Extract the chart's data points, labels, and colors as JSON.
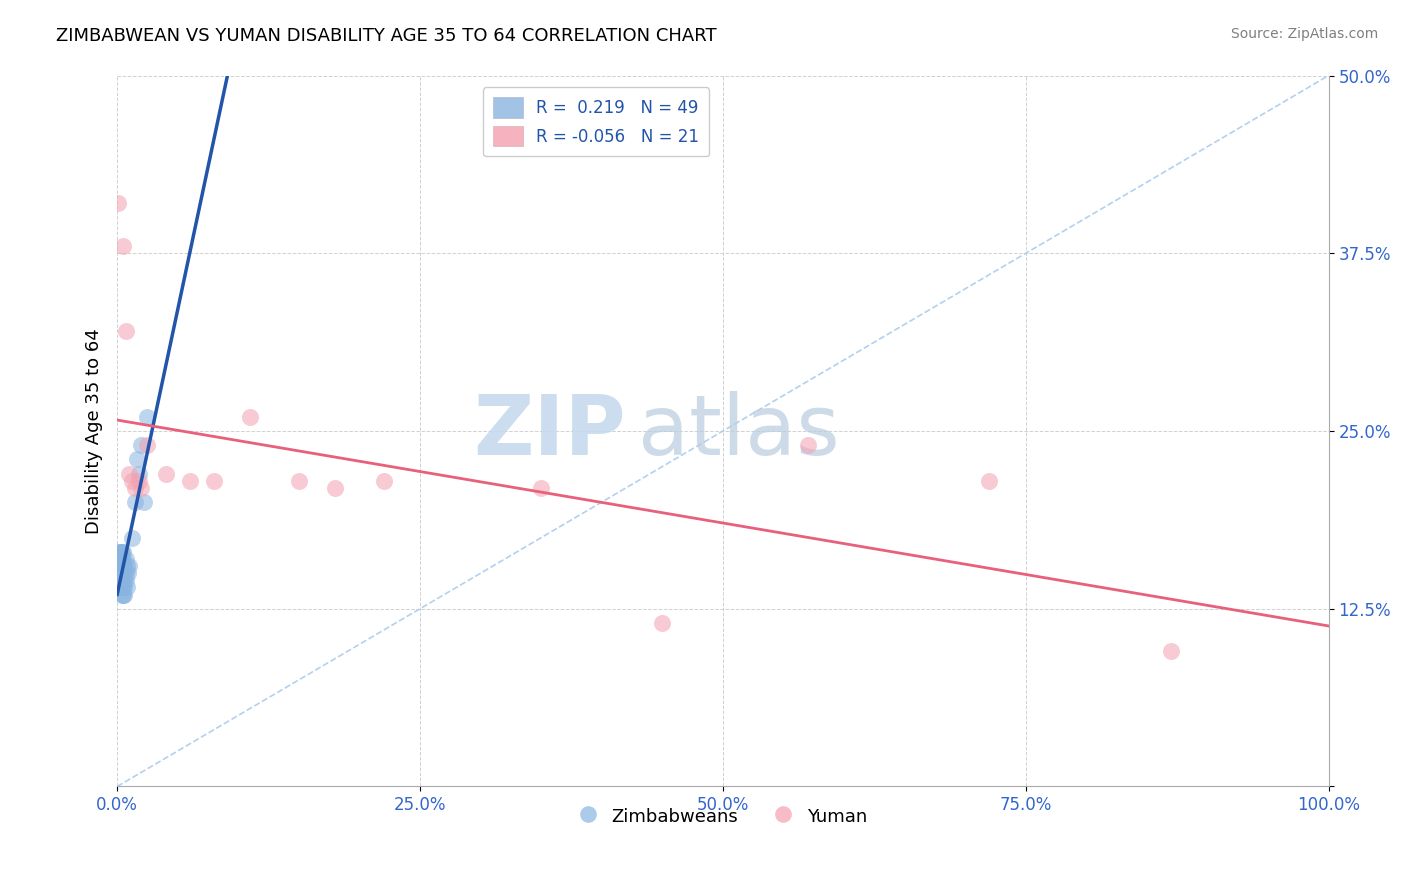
{
  "title": "ZIMBABWEAN VS YUMAN DISABILITY AGE 35 TO 64 CORRELATION CHART",
  "source_text": "Source: ZipAtlas.com",
  "ylabel": "Disability Age 35 to 64",
  "xlim": [
    0,
    1.0
  ],
  "ylim": [
    0,
    0.5
  ],
  "xticks": [
    0.0,
    0.25,
    0.5,
    0.75,
    1.0
  ],
  "xticklabels": [
    "0.0%",
    "25.0%",
    "50.0%",
    "75.0%",
    "100.0%"
  ],
  "yticks": [
    0.0,
    0.125,
    0.25,
    0.375,
    0.5
  ],
  "yticklabels": [
    "",
    "12.5%",
    "25.0%",
    "37.5%",
    "50.0%"
  ],
  "legend_labels": [
    "Zimbabweans",
    "Yuman"
  ],
  "R_blue": 0.219,
  "N_blue": 49,
  "R_pink": -0.056,
  "N_pink": 21,
  "blue_color": "#89B4E0",
  "pink_color": "#F4A0B0",
  "blue_line_color": "#2255AA",
  "pink_line_color": "#E8607A",
  "ref_line_color": "#AACCEE",
  "watermark_color": "#C5D8EE",
  "blue_scatter_x": [
    0.001,
    0.001,
    0.001,
    0.001,
    0.002,
    0.002,
    0.002,
    0.002,
    0.002,
    0.003,
    0.003,
    0.003,
    0.003,
    0.003,
    0.003,
    0.003,
    0.004,
    0.004,
    0.004,
    0.004,
    0.004,
    0.004,
    0.004,
    0.005,
    0.005,
    0.005,
    0.005,
    0.005,
    0.005,
    0.005,
    0.006,
    0.006,
    0.006,
    0.006,
    0.006,
    0.007,
    0.007,
    0.007,
    0.008,
    0.008,
    0.009,
    0.01,
    0.012,
    0.015,
    0.016,
    0.018,
    0.02,
    0.022,
    0.025
  ],
  "blue_scatter_y": [
    0.155,
    0.16,
    0.165,
    0.15,
    0.145,
    0.155,
    0.16,
    0.165,
    0.145,
    0.15,
    0.155,
    0.16,
    0.165,
    0.15,
    0.145,
    0.14,
    0.155,
    0.16,
    0.15,
    0.145,
    0.14,
    0.135,
    0.165,
    0.155,
    0.16,
    0.15,
    0.145,
    0.14,
    0.135,
    0.165,
    0.155,
    0.15,
    0.145,
    0.14,
    0.135,
    0.16,
    0.15,
    0.145,
    0.155,
    0.14,
    0.15,
    0.155,
    0.175,
    0.2,
    0.23,
    0.22,
    0.24,
    0.2,
    0.26
  ],
  "pink_scatter_x": [
    0.001,
    0.005,
    0.007,
    0.01,
    0.012,
    0.015,
    0.018,
    0.02,
    0.025,
    0.04,
    0.06,
    0.08,
    0.11,
    0.15,
    0.18,
    0.22,
    0.35,
    0.45,
    0.57,
    0.72,
    0.87
  ],
  "pink_scatter_y": [
    0.41,
    0.38,
    0.32,
    0.22,
    0.215,
    0.21,
    0.215,
    0.21,
    0.24,
    0.22,
    0.215,
    0.215,
    0.26,
    0.215,
    0.21,
    0.215,
    0.21,
    0.115,
    0.24,
    0.215,
    0.095
  ]
}
